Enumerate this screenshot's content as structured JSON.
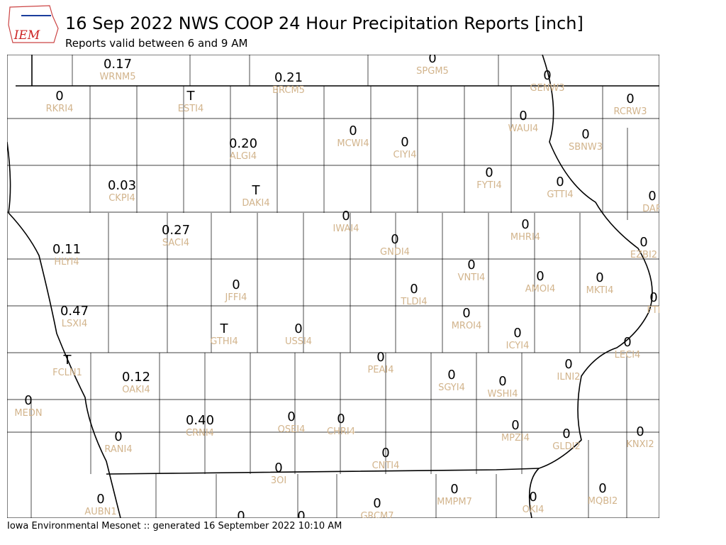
{
  "logo": "IEM",
  "header": {
    "title": "16 Sep 2022 NWS COOP 24 Hour Precipitation Reports [inch]",
    "subtitle": "Reports valid between 6 and 9 AM"
  },
  "footer": "Iowa Environmental Mesonet :: generated 16 September 2022 10:10 AM",
  "stations": [
    {
      "value": "0.17",
      "id": "WRNM5"
    },
    {
      "value": "0",
      "id": "SPGM5"
    },
    {
      "value": "0.21",
      "id": "BRCM5"
    },
    {
      "value": "0",
      "id": "GENW3"
    },
    {
      "value": "0",
      "id": "RKRI4"
    },
    {
      "value": "T",
      "id": "ESTI4"
    },
    {
      "value": "0",
      "id": "RCRW3"
    },
    {
      "value": "0",
      "id": "WAUI4"
    },
    {
      "value": "0",
      "id": "MCWI4"
    },
    {
      "value": "0",
      "id": "SBNW3"
    },
    {
      "value": "0.20",
      "id": "ALGI4"
    },
    {
      "value": "0",
      "id": "CIYI4"
    },
    {
      "value": "0",
      "id": "FYTI4"
    },
    {
      "value": "0",
      "id": "GTTI4"
    },
    {
      "value": "0.03",
      "id": "CKPI4"
    },
    {
      "value": "T",
      "id": "DAKI4"
    },
    {
      "value": "0",
      "id": "DAR"
    },
    {
      "value": "0",
      "id": "IWAI4"
    },
    {
      "value": "0.27",
      "id": "SACI4"
    },
    {
      "value": "0",
      "id": "MHRI4"
    },
    {
      "value": "0",
      "id": "GNDI4"
    },
    {
      "value": "0",
      "id": "EZBI2"
    },
    {
      "value": "0.11",
      "id": "HLYI4"
    },
    {
      "value": "0",
      "id": "VNTI4"
    },
    {
      "value": "0",
      "id": "AMOI4"
    },
    {
      "value": "0",
      "id": "MKTI4"
    },
    {
      "value": "0",
      "id": "JFFI4"
    },
    {
      "value": "0",
      "id": "TLDI4"
    },
    {
      "value": "0",
      "id": "FTI"
    },
    {
      "value": "0.47",
      "id": "LSXI4"
    },
    {
      "value": "0",
      "id": "MROI4"
    },
    {
      "value": "T",
      "id": "GTHI4"
    },
    {
      "value": "0",
      "id": "USSI4"
    },
    {
      "value": "0",
      "id": "ICYI4"
    },
    {
      "value": "0",
      "id": "LECI4"
    },
    {
      "value": "0",
      "id": "PEAI4"
    },
    {
      "value": "T",
      "id": "FCLN1"
    },
    {
      "value": "0",
      "id": "ILNI2"
    },
    {
      "value": "0",
      "id": "SGYI4"
    },
    {
      "value": "0.12",
      "id": "OAKI4"
    },
    {
      "value": "0",
      "id": "WSHI4"
    },
    {
      "value": "0",
      "id": "MEDN"
    },
    {
      "value": "0",
      "id": "OSEI4"
    },
    {
      "value": "0",
      "id": "CHRI4"
    },
    {
      "value": "0.40",
      "id": "CRNI4"
    },
    {
      "value": "0",
      "id": "MPZI4"
    },
    {
      "value": "0",
      "id": "KNXI2"
    },
    {
      "value": "0",
      "id": "GLDI2"
    },
    {
      "value": "0",
      "id": "RANI4"
    },
    {
      "value": "0",
      "id": "CNTI4"
    },
    {
      "value": "0",
      "id": "3OI"
    },
    {
      "value": "0",
      "id": "MMPM7"
    },
    {
      "value": "0",
      "id": "MQBI2"
    },
    {
      "value": "0",
      "id": "AUBN1"
    },
    {
      "value": "0",
      "id": "OKI4"
    },
    {
      "value": "0",
      "id": "GRCM7"
    },
    {
      "value": "0"
    },
    {
      "value": "0"
    }
  ]
}
